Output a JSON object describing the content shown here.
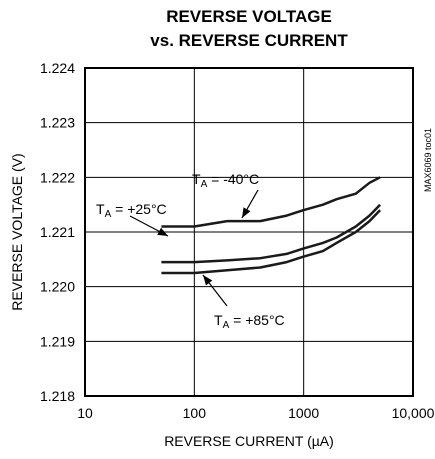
{
  "chart_data": {
    "type": "line",
    "title_line1": "REVERSE VOLTAGE",
    "title_line2": "vs. REVERSE CURRENT",
    "xlabel": "REVERSE CURRENT (µA)",
    "ylabel": "REVERSE VOLTAGE (V)",
    "xscale": "log",
    "xlim": [
      10,
      10000
    ],
    "ylim": [
      1.218,
      1.224
    ],
    "xticks": [
      "10",
      "100",
      "1000",
      "10,000"
    ],
    "yticks": [
      "1.218",
      "1.219",
      "1.220",
      "1.221",
      "1.222",
      "1.223",
      "1.224"
    ],
    "grid": true,
    "figure_code": "MAX6069 toc01",
    "series": [
      {
        "name": "TA = -40°C",
        "points": [
          [
            50,
            1.2211
          ],
          [
            100,
            1.2211
          ],
          [
            200,
            1.2212
          ],
          [
            400,
            1.2212
          ],
          [
            700,
            1.2213
          ],
          [
            1000,
            1.2214
          ],
          [
            1500,
            1.2215
          ],
          [
            2000,
            1.2216
          ],
          [
            3000,
            1.2217
          ],
          [
            4000,
            1.2219
          ],
          [
            5000,
            1.222
          ]
        ]
      },
      {
        "name": "TA = +25°C",
        "points": [
          [
            50,
            1.22045
          ],
          [
            100,
            1.22045
          ],
          [
            200,
            1.22048
          ],
          [
            400,
            1.22052
          ],
          [
            700,
            1.2206
          ],
          [
            1000,
            1.2207
          ],
          [
            1500,
            1.2208
          ],
          [
            2000,
            1.2209
          ],
          [
            3000,
            1.2211
          ],
          [
            4000,
            1.2213
          ],
          [
            5000,
            1.2215
          ]
        ]
      },
      {
        "name": "TA = +85°C",
        "points": [
          [
            50,
            1.22025
          ],
          [
            100,
            1.22025
          ],
          [
            200,
            1.2203
          ],
          [
            400,
            1.22035
          ],
          [
            700,
            1.22045
          ],
          [
            1000,
            1.22055
          ],
          [
            1500,
            1.22065
          ],
          [
            2000,
            1.2208
          ],
          [
            3000,
            1.221
          ],
          [
            4000,
            1.2212
          ],
          [
            5000,
            1.2214
          ]
        ]
      }
    ],
    "annotations": [
      {
        "sub": "A",
        "rest": " = -40°C"
      },
      {
        "sub": "A",
        "rest": " = +25°C"
      },
      {
        "sub": "A",
        "rest": " = +85°C"
      }
    ],
    "line_color": "#1a1a1a"
  }
}
